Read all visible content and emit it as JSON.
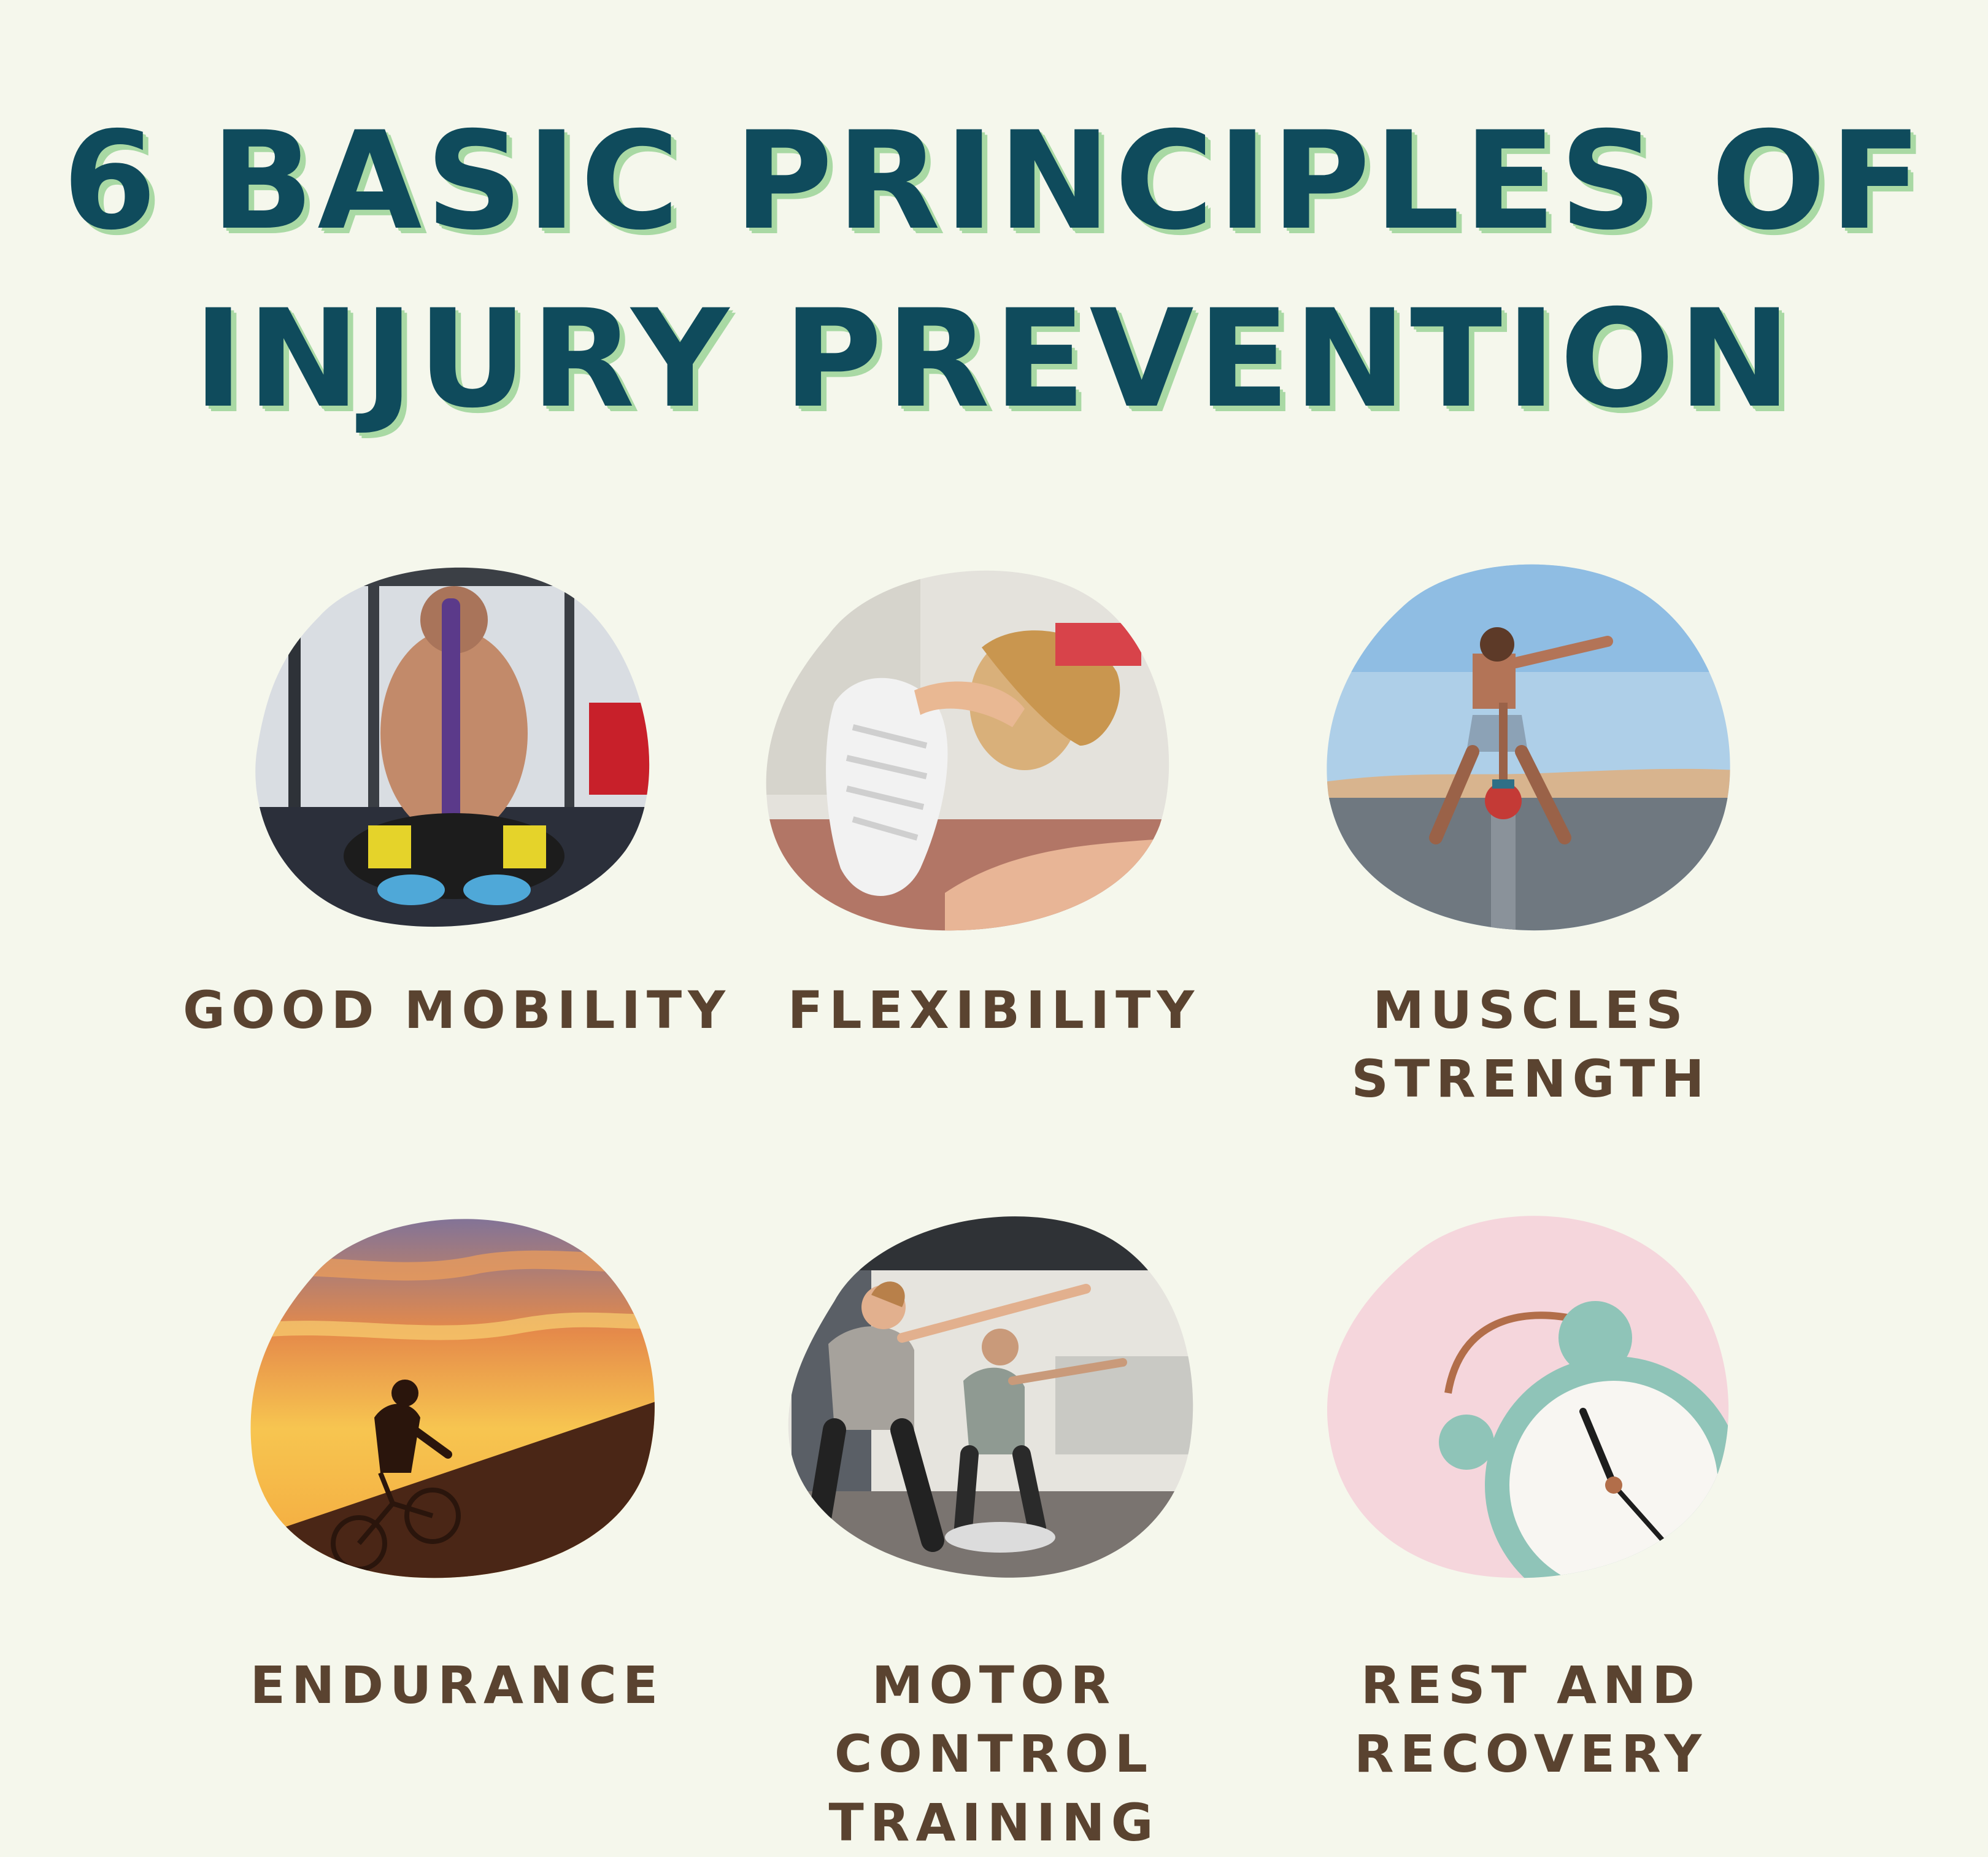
{
  "title": {
    "line1": "6 BASIC PRINCIPLES OF",
    "line2": "INJURY PREVENTION"
  },
  "colors": {
    "background": "#f5f7ec",
    "title": "#0f4b5c",
    "title_shadow": "#a9d9a4",
    "label": "#5a4330"
  },
  "principles": [
    {
      "line1": "GOOD MOBILITY",
      "line2": "",
      "image": "mobility-photo"
    },
    {
      "line1": "FLEXIBILITY",
      "line2": "",
      "image": "flexibility-photo"
    },
    {
      "line1": "MUSCLES",
      "line2": "STRENGTH",
      "image": "strength-photo"
    },
    {
      "line1": "ENDURANCE",
      "line2": "",
      "image": "endurance-photo"
    },
    {
      "line1": "MOTOR CONTROL",
      "line2": "TRAINING",
      "image": "motor-control-photo"
    },
    {
      "line1": "REST AND",
      "line2": "RECOVERY",
      "image": "rest-recovery-photo"
    }
  ]
}
